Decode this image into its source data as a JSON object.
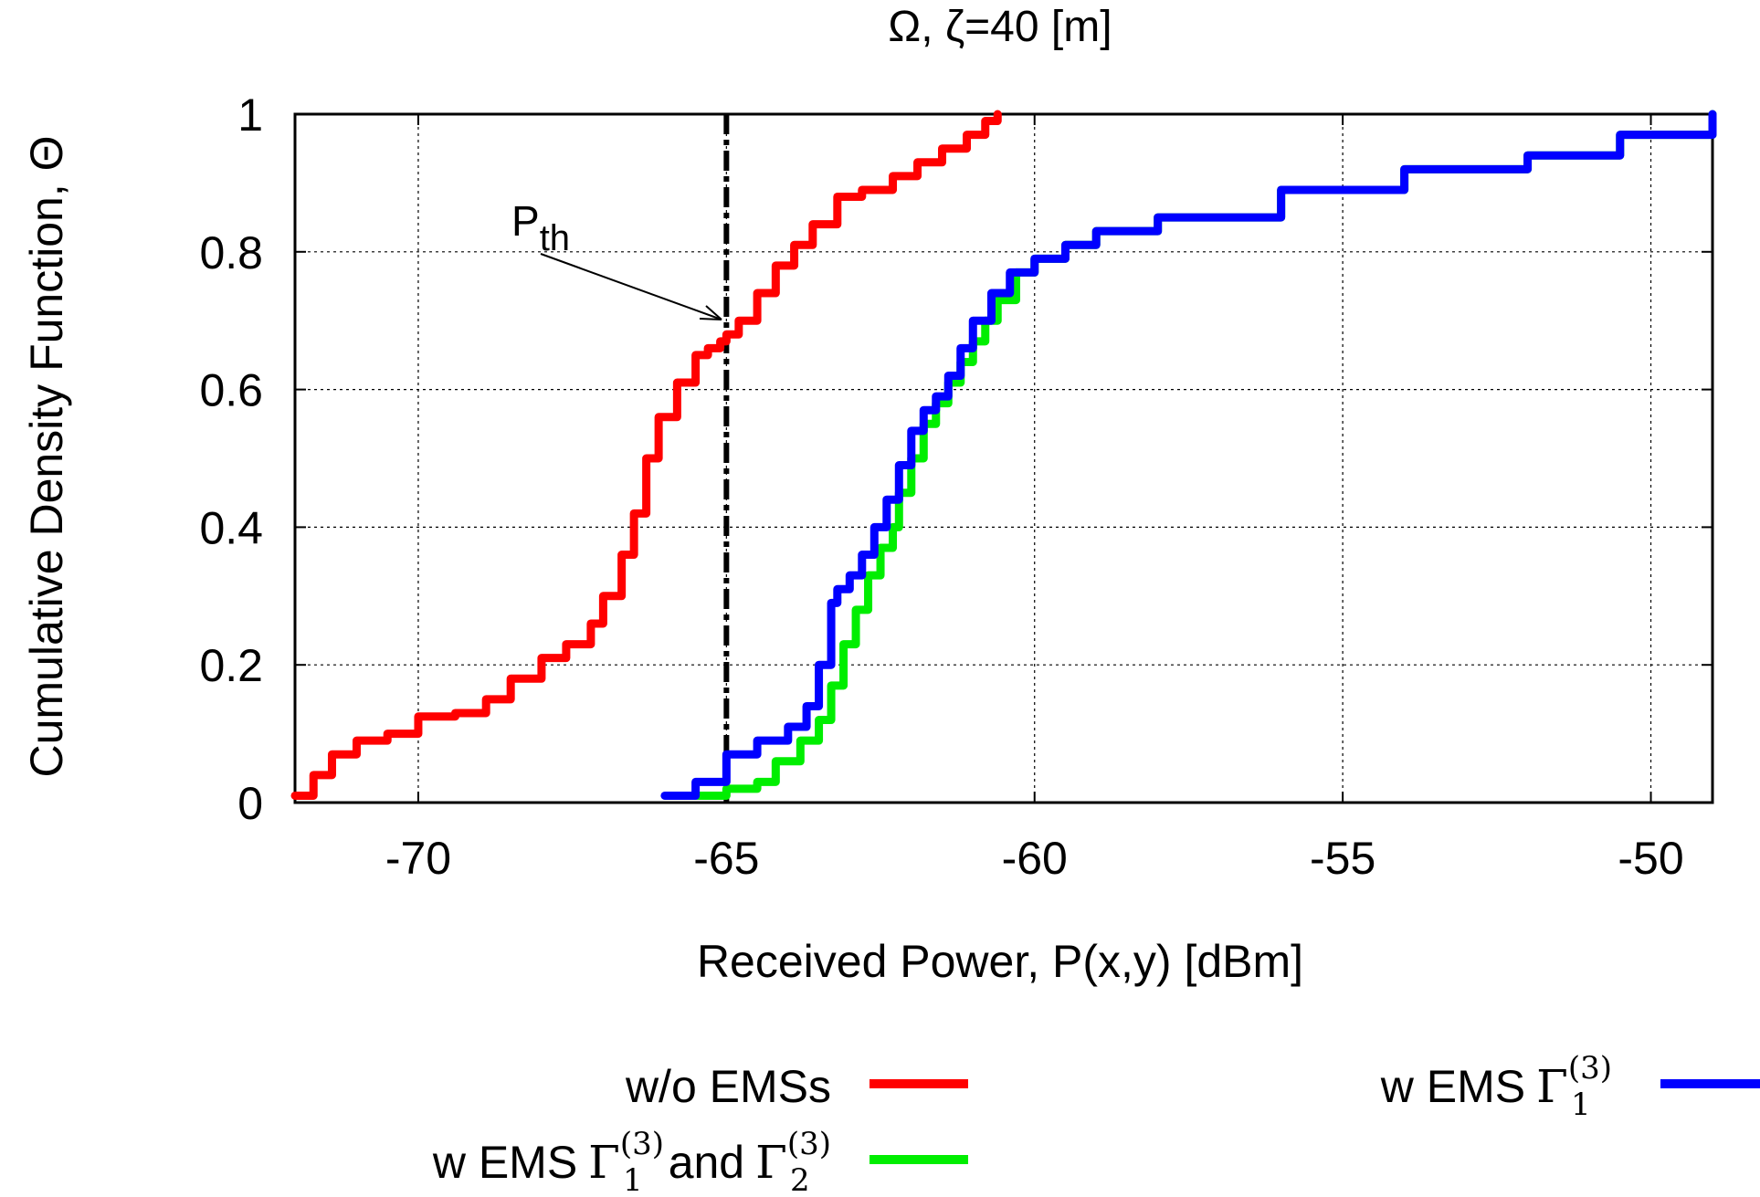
{
  "chart_data": {
    "type": "line",
    "title": {
      "main": "Ω, ζ=40 [m]"
    },
    "xlabel": "Received Power, P(x,y) [dBm]",
    "ylabel": "Cumulative Density Function, Θ",
    "xlim": [
      -72,
      -49
    ],
    "ylim": [
      0,
      1
    ],
    "xticks": [
      -70,
      -65,
      -60,
      -55,
      -50
    ],
    "yticks": [
      0,
      0.2,
      0.4,
      0.6,
      0.8,
      1
    ],
    "ytick_labels": [
      "0",
      "0.2",
      "0.4",
      "0.6",
      "0.8",
      "1"
    ],
    "grid": true,
    "legend_position": "bottom",
    "threshold": {
      "x": -65,
      "label_main": "P",
      "label_sub": "th"
    },
    "series": [
      {
        "name": "w/o EMSs",
        "color": "#ff0000",
        "x": [
          -72.0,
          -71.7,
          -71.4,
          -71.0,
          -70.5,
          -70.0,
          -69.4,
          -68.9,
          -68.5,
          -68.0,
          -67.6,
          -67.2,
          -67.0,
          -66.7,
          -66.5,
          -66.3,
          -66.1,
          -65.8,
          -65.5,
          -65.3,
          -65.1,
          -65.0,
          -64.8,
          -64.5,
          -64.2,
          -63.9,
          -63.6,
          -63.2,
          -62.8,
          -62.3,
          -61.9,
          -61.5,
          -61.1,
          -60.8,
          -60.6
        ],
        "y": [
          0.01,
          0.04,
          0.07,
          0.09,
          0.1,
          0.125,
          0.13,
          0.15,
          0.18,
          0.21,
          0.23,
          0.26,
          0.3,
          0.36,
          0.42,
          0.5,
          0.56,
          0.61,
          0.65,
          0.66,
          0.67,
          0.68,
          0.7,
          0.74,
          0.78,
          0.81,
          0.84,
          0.88,
          0.89,
          0.91,
          0.93,
          0.95,
          0.97,
          0.99,
          1.0
        ]
      },
      {
        "name": "w EMS Γ1(3) and Γ2(3)",
        "color": "#00ee00",
        "x": [
          -65.5,
          -65.0,
          -64.5,
          -64.2,
          -63.8,
          -63.5,
          -63.3,
          -63.1,
          -62.9,
          -62.7,
          -62.5,
          -62.3,
          -62.2,
          -62.0,
          -61.8,
          -61.6,
          -61.4,
          -61.2,
          -61.0,
          -60.8,
          -60.6,
          -60.3,
          -60.0,
          -59.5,
          -59.0,
          -58.0,
          -56.0,
          -54.0,
          -52.0,
          -50.5,
          -49.0
        ],
        "y": [
          0.01,
          0.02,
          0.03,
          0.06,
          0.09,
          0.12,
          0.17,
          0.23,
          0.28,
          0.33,
          0.37,
          0.4,
          0.45,
          0.5,
          0.55,
          0.58,
          0.61,
          0.64,
          0.67,
          0.7,
          0.73,
          0.77,
          0.79,
          0.81,
          0.83,
          0.85,
          0.89,
          0.92,
          0.94,
          0.97,
          1.0
        ]
      },
      {
        "name": "w EMS Γ1(3)",
        "color": "#0000ff",
        "x": [
          -66.0,
          -65.5,
          -65.0,
          -64.5,
          -64.0,
          -63.7,
          -63.5,
          -63.3,
          -63.2,
          -63.0,
          -62.8,
          -62.6,
          -62.4,
          -62.2,
          -62.0,
          -61.8,
          -61.6,
          -61.4,
          -61.2,
          -61.0,
          -60.7,
          -60.4,
          -60.0,
          -59.5,
          -59.0,
          -58.0,
          -56.0,
          -54.0,
          -52.0,
          -50.5,
          -49.0
        ],
        "y": [
          0.01,
          0.03,
          0.07,
          0.09,
          0.11,
          0.14,
          0.2,
          0.29,
          0.31,
          0.33,
          0.36,
          0.4,
          0.44,
          0.49,
          0.54,
          0.57,
          0.59,
          0.62,
          0.66,
          0.7,
          0.74,
          0.77,
          0.79,
          0.81,
          0.83,
          0.85,
          0.89,
          0.92,
          0.94,
          0.97,
          1.0
        ]
      }
    ]
  },
  "legend": {
    "wo_label": "w/o EMSs",
    "and_label": "and",
    "w_prefix": "w EMS",
    "gamma_symbol": "Γ",
    "sub1": "1",
    "sub2": "2",
    "sup": "(3)"
  }
}
